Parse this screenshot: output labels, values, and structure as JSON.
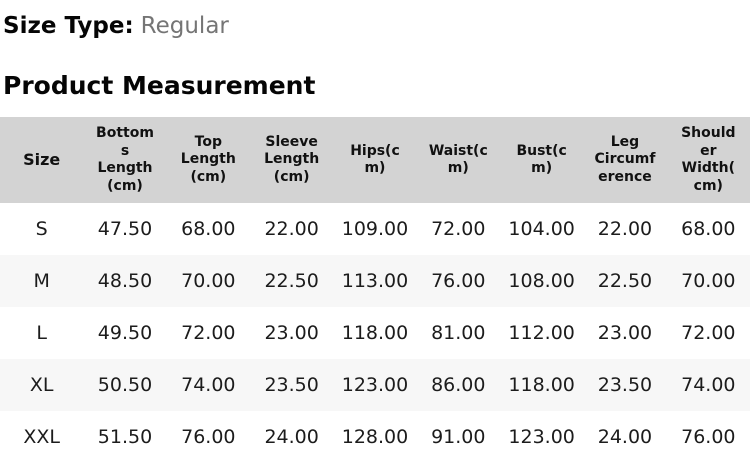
{
  "page": {
    "size_type_label": "Size Type:",
    "size_type_value": "Regular",
    "section_title": "Product Measurement"
  },
  "table": {
    "columns": [
      "Size",
      "Bottoms Length(cm)",
      "Top Length(cm)",
      "Sleeve Length(cm)",
      "Hips(cm)",
      "Waist(cm)",
      "Bust(cm)",
      "Leg Circumference",
      "Shoulder Width(cm)"
    ],
    "rows": [
      {
        "size": "S",
        "values": [
          "47.50",
          "68.00",
          "22.00",
          "109.00",
          "72.00",
          "104.00",
          "22.00",
          "68.00"
        ]
      },
      {
        "size": "M",
        "values": [
          "48.50",
          "70.00",
          "22.50",
          "113.00",
          "76.00",
          "108.00",
          "22.50",
          "70.00"
        ]
      },
      {
        "size": "L",
        "values": [
          "49.50",
          "72.00",
          "23.00",
          "118.00",
          "81.00",
          "112.00",
          "23.00",
          "72.00"
        ]
      },
      {
        "size": "XL",
        "values": [
          "50.50",
          "74.00",
          "23.50",
          "123.00",
          "86.00",
          "118.00",
          "23.50",
          "74.00"
        ]
      },
      {
        "size": "XXL",
        "values": [
          "51.50",
          "76.00",
          "24.00",
          "128.00",
          "91.00",
          "123.00",
          "24.00",
          "76.00"
        ]
      }
    ]
  },
  "colors": {
    "header_bg": "#d3d3d3",
    "alt_row_bg": "#f7f7f7",
    "muted_text": "#757575",
    "data_text": "#1c1c1c",
    "heading_text": "#050505"
  }
}
